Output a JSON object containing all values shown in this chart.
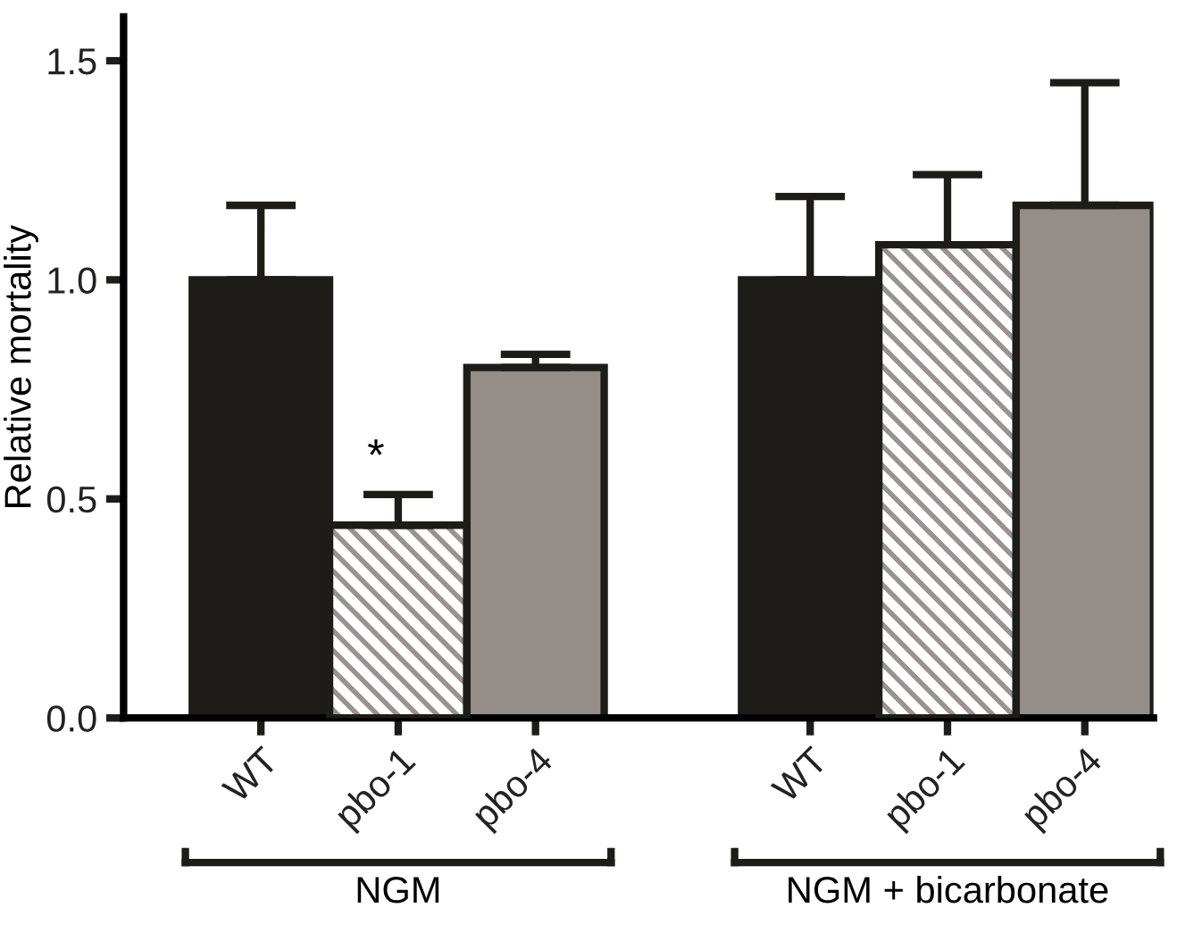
{
  "chart_data": {
    "type": "bar",
    "ylabel": "Relative mortality",
    "categories": [
      "WT",
      "pbo-1",
      "pbo-4",
      null,
      "WT",
      "pbo-1",
      "pbo-4"
    ],
    "series": [
      {
        "color": "#1e1c18",
        "values": [
          1.0,
          null,
          null,
          null,
          1.0,
          null,
          null
        ],
        "errors": [
          [
            1.0,
            1.17
          ],
          null,
          null,
          null,
          [
            1.0,
            1.19
          ],
          null,
          null
        ]
      },
      {
        "color": "#9a9290",
        "values": [
          null,
          0.44,
          null,
          null,
          null,
          1.08,
          null
        ],
        "errors": [
          null,
          [
            0.44,
            0.51
          ],
          null,
          null,
          null,
          [
            1.08,
            1.24
          ],
          null
        ]
      },
      {
        "color": "#948d88",
        "values": [
          null,
          null,
          0.8,
          null,
          null,
          null,
          1.17
        ],
        "errors": [
          null,
          null,
          [
            0.8,
            0.83
          ],
          null,
          null,
          null,
          [
            1.17,
            1.45
          ]
        ]
      }
    ],
    "ylim": [
      0,
      1.6
    ],
    "yticks": [
      {
        "value": 0,
        "label": "0.0"
      },
      0.5,
      {
        "value": 1,
        "label": "1.0"
      },
      1.5
    ],
    "annotations": [
      "*",
      "NGM",
      "NGM + bicarbonate"
    ]
  }
}
